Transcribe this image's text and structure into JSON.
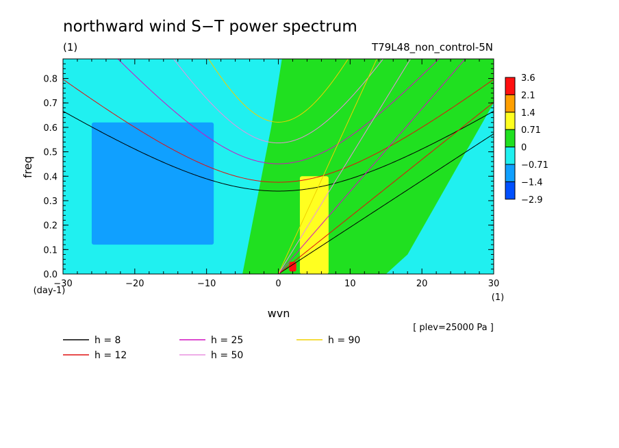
{
  "chart_data": {
    "type": "heatmap",
    "title": "northward wind S−T power spectrum",
    "subtitle_left": "(1)",
    "subtitle_right": "T79L48_non_control-5N",
    "xlabel": "wvn",
    "ylabel": "freq",
    "x_unit": "(1)",
    "y_unit": "(day-1)",
    "xlim": [
      -30,
      30
    ],
    "ylim": [
      0,
      0.88
    ],
    "x_ticks": [
      -30,
      -20,
      -10,
      0,
      10,
      20,
      30
    ],
    "y_ticks": [
      0.0,
      0.1,
      0.2,
      0.3,
      0.4,
      0.5,
      0.6,
      0.7,
      0.8
    ],
    "x_tick_labels": [
      "−30",
      "−20",
      "−10",
      "0",
      "10",
      "20",
      "30"
    ],
    "y_tick_labels": [
      "0.0",
      "0.1",
      "0.2",
      "0.3",
      "0.4",
      "0.5",
      "0.6",
      "0.7",
      "0.8"
    ],
    "colorbar": {
      "labels": [
        "3.6",
        "2.1",
        "1.4",
        "0.71",
        "0",
        "−0.71",
        "−1.4",
        "−2.9"
      ],
      "colors": [
        "#ff1010",
        "#ff9f00",
        "#ffff20",
        "#20e020",
        "#20f0f0",
        "#10a0ff",
        "#0050ff"
      ]
    },
    "annotation": "[ plev=25000 Pa ]",
    "field_regions": [
      {
        "level": "blue",
        "color": "#10a0ff",
        "x_min": -26,
        "x_max": -9,
        "y_min": 0.12,
        "y_max": 0.62
      },
      {
        "level": "green",
        "color": "#20e020",
        "polygon": [
          [
            -5,
            0
          ],
          [
            -3,
            0.3
          ],
          [
            -1,
            0.6
          ],
          [
            0.5,
            0.88
          ],
          [
            30,
            0.88
          ],
          [
            30,
            0.7
          ],
          [
            18,
            0.08
          ],
          [
            15,
            0
          ]
        ]
      },
      {
        "level": "yellow",
        "color": "#ffff20",
        "x_min": 3,
        "x_max": 7,
        "y_min": 0,
        "y_max": 0.4
      },
      {
        "level": "red",
        "color": "#ff1010",
        "x_min": 1.5,
        "x_max": 2.5,
        "y_min": 0.01,
        "y_max": 0.05
      }
    ],
    "dispersion_curves": {
      "h_values": [
        8,
        12,
        25,
        50,
        90
      ],
      "colors": [
        "#000000",
        "#e01010",
        "#d010c0",
        "#e890e0",
        "#f0d000"
      ]
    },
    "legend": [
      {
        "label": "h =  8",
        "color": "#000000"
      },
      {
        "label": "h = 12",
        "color": "#e01010"
      },
      {
        "label": "h = 25",
        "color": "#d010c0"
      },
      {
        "label": "h = 50",
        "color": "#e890e0"
      },
      {
        "label": "h = 90",
        "color": "#f0d000"
      }
    ],
    "grid": false
  }
}
